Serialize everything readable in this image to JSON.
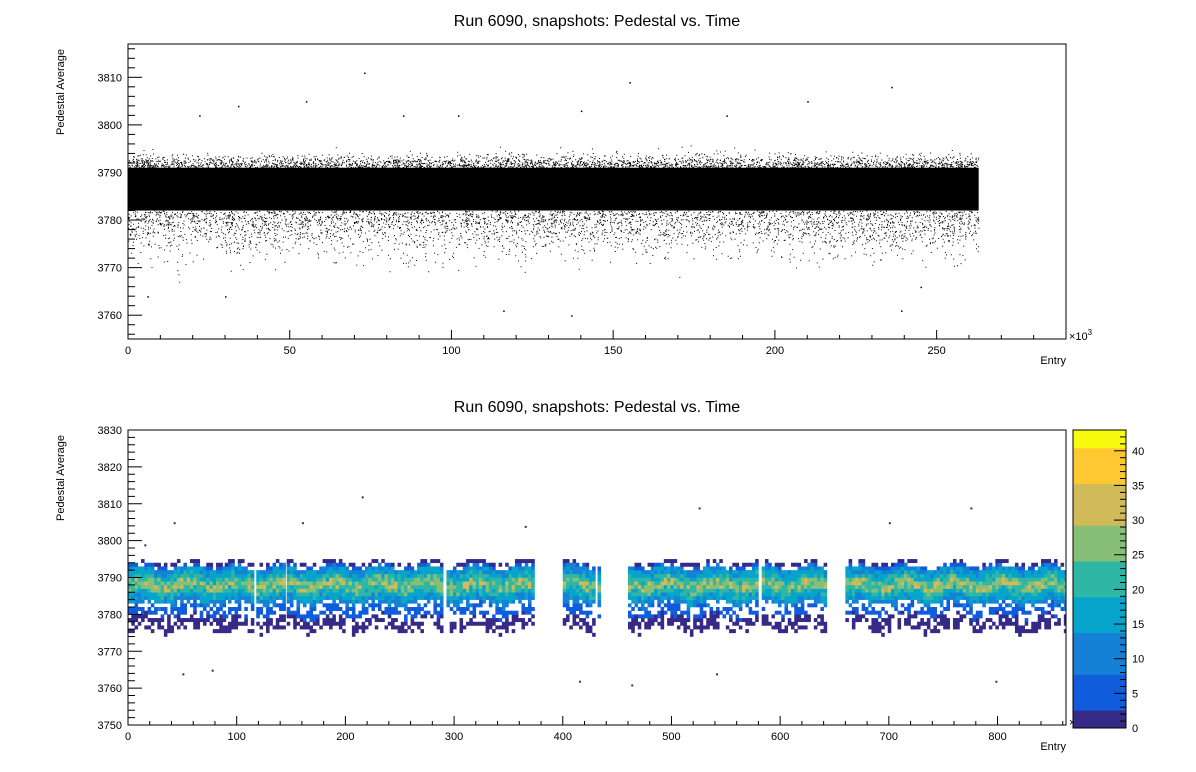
{
  "chart_data": [
    {
      "type": "scatter",
      "title": "Run 6090, snapshots: Pedestal vs. Time",
      "xlabel": "Entry",
      "ylabel": "Pedestal Average",
      "x_multiplier_label": "×10",
      "x_multiplier_exp": "3",
      "xlim": [
        0,
        290
      ],
      "ylim": [
        3755,
        3817
      ],
      "xticks": [
        0,
        50,
        100,
        150,
        200,
        250
      ],
      "yticks": [
        3760,
        3770,
        3780,
        3790,
        3800,
        3810
      ],
      "x_range_of_points": [
        0,
        263
      ],
      "band": {
        "core_min": 3782,
        "core_max": 3791,
        "tail_min": 3768,
        "tail_max": 3795
      },
      "outliers": [
        {
          "x": 73,
          "y": 3811
        },
        {
          "x": 155,
          "y": 3809
        },
        {
          "x": 236,
          "y": 3808
        },
        {
          "x": 34,
          "y": 3804
        },
        {
          "x": 55,
          "y": 3805
        },
        {
          "x": 210,
          "y": 3805
        },
        {
          "x": 22,
          "y": 3802
        },
        {
          "x": 85,
          "y": 3802
        },
        {
          "x": 102,
          "y": 3802
        },
        {
          "x": 140,
          "y": 3803
        },
        {
          "x": 185,
          "y": 3802
        },
        {
          "x": 6,
          "y": 3764
        },
        {
          "x": 30,
          "y": 3764
        },
        {
          "x": 137,
          "y": 3760
        },
        {
          "x": 239,
          "y": 3761
        },
        {
          "x": 245,
          "y": 3766
        },
        {
          "x": 116,
          "y": 3761
        }
      ]
    },
    {
      "type": "heatmap",
      "title": "Run 6090, snapshots: Pedestal vs. Time",
      "xlabel": "Entry",
      "ylabel": "Pedestal Average",
      "x_multiplier_label": "×10",
      "x_multiplier_exp": "3",
      "xlim": [
        0,
        863
      ],
      "ylim": [
        3750,
        3830
      ],
      "xticks": [
        0,
        100,
        200,
        300,
        400,
        500,
        600,
        700,
        800
      ],
      "yticks": [
        3750,
        3760,
        3770,
        3780,
        3790,
        3800,
        3810,
        3820,
        3830
      ],
      "z_range": [
        0,
        43
      ],
      "z_ticks": [
        0,
        5,
        10,
        15,
        20,
        25,
        30,
        35,
        40
      ],
      "palette": [
        "#352a87",
        "#0f5cdd",
        "#1481d6",
        "#06a4ca",
        "#2eb7a4",
        "#87bf77",
        "#d1bb59",
        "#fec832",
        "#f9fb0e"
      ],
      "data_segments": [
        [
          0,
          88
        ],
        [
          89,
          115
        ],
        [
          118,
          143
        ],
        [
          146,
          290
        ],
        [
          293,
          372
        ],
        [
          400,
          428
        ],
        [
          432,
          435
        ],
        [
          460,
          580
        ],
        [
          583,
          643
        ],
        [
          660,
          863
        ]
      ],
      "outliers": [
        {
          "x": 215,
          "y": 3811
        },
        {
          "x": 525,
          "y": 3808
        },
        {
          "x": 775,
          "y": 3808
        },
        {
          "x": 15,
          "y": 3798
        },
        {
          "x": 42,
          "y": 3804
        },
        {
          "x": 160,
          "y": 3804
        },
        {
          "x": 365,
          "y": 3803
        },
        {
          "x": 700,
          "y": 3804
        },
        {
          "x": 50,
          "y": 3763
        },
        {
          "x": 77,
          "y": 3764
        },
        {
          "x": 415,
          "y": 3761
        },
        {
          "x": 463,
          "y": 3760
        },
        {
          "x": 541,
          "y": 3763
        },
        {
          "x": 798,
          "y": 3761
        }
      ]
    }
  ]
}
